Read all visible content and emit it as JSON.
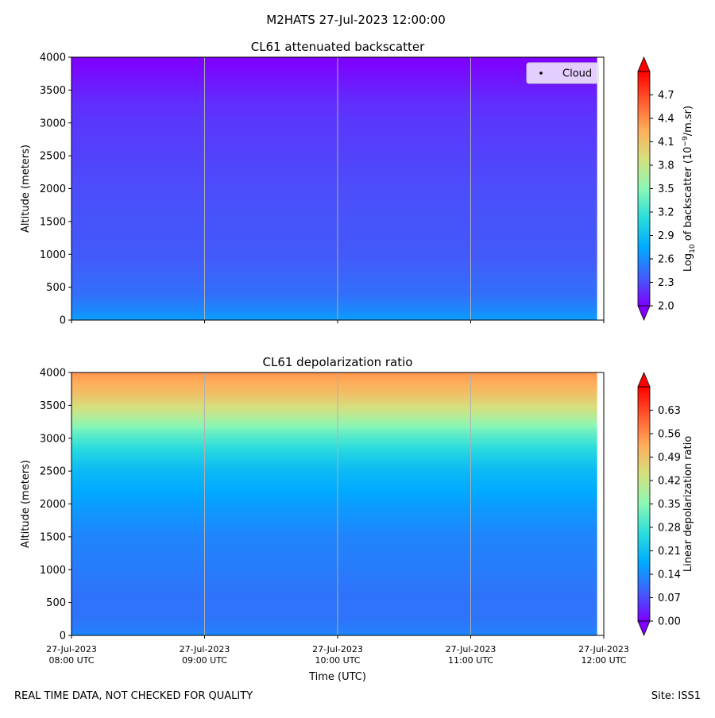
{
  "figure": {
    "suptitle": "M2HATS 27-Jul-2023 12:00:00",
    "footer_left": "REAL TIME DATA, NOT CHECKED FOR QUALITY",
    "footer_right": "Site: ISS1",
    "xlabel": "Time (UTC)",
    "colors": {
      "colormap": [
        "#7f00ff",
        "#3f60fa",
        "#00aaff",
        "#2adddd",
        "#8bf7b5",
        "#d4e17f",
        "#ffae5a",
        "#ff5a2e",
        "#ff0000"
      ],
      "vgrid": "#b0b0b0",
      "cloud_marker": "#000000"
    }
  },
  "chart_data": [
    {
      "type": "heatmap",
      "title": "CL61 attenuated backscatter",
      "ylabel": "Altitude (meters)",
      "colorbar_label_main": "Log",
      "colorbar_label_sub": "10",
      "colorbar_label_rest": " of backscatter (10",
      "colorbar_label_sup": "−9",
      "colorbar_label_end": "/m.sr)",
      "colorbar_range": [
        2.0,
        5.0
      ],
      "colorbar_ticks": [
        "2.0",
        "2.3",
        "2.6",
        "2.9",
        "3.2",
        "3.5",
        "3.8",
        "4.1",
        "4.4",
        "4.7"
      ],
      "colorbar_tick_values": [
        2.0,
        2.3,
        2.6,
        2.9,
        3.2,
        3.5,
        3.8,
        4.1,
        4.4,
        4.7
      ],
      "ylim": [
        0,
        4000
      ],
      "yticks": [
        0,
        500,
        1000,
        1500,
        2000,
        2500,
        3000,
        3500,
        4000
      ],
      "xlim_hours": [
        8,
        12
      ],
      "data_end_hour": 11.95,
      "legend": {
        "position": "upper-right",
        "entries": [
          "Cloud"
        ]
      },
      "profile": {
        "altitude": [
          0,
          100,
          200,
          400,
          600,
          800,
          1000,
          1500,
          2000,
          2500,
          3000,
          3300,
          3600,
          3800,
          4000
        ],
        "value": [
          2.7,
          2.62,
          2.55,
          2.45,
          2.42,
          2.38,
          2.35,
          2.33,
          2.3,
          2.26,
          2.22,
          2.18,
          2.1,
          2.04,
          2.0
        ]
      }
    },
    {
      "type": "heatmap",
      "title": "CL61 depolarization ratio",
      "ylabel": "Altitude (meters)",
      "colorbar_label": "Linear depolarization ratio",
      "colorbar_range": [
        0.0,
        0.7
      ],
      "colorbar_ticks": [
        "0.00",
        "0.07",
        "0.14",
        "0.21",
        "0.28",
        "0.35",
        "0.42",
        "0.49",
        "0.56",
        "0.63"
      ],
      "colorbar_tick_values": [
        0.0,
        0.07,
        0.14,
        0.21,
        0.28,
        0.35,
        0.42,
        0.49,
        0.56,
        0.63
      ],
      "ylim": [
        0,
        4000
      ],
      "yticks": [
        0,
        500,
        1000,
        1500,
        2000,
        2500,
        3000,
        3500,
        4000
      ],
      "xlim_hours": [
        8,
        12
      ],
      "data_end_hour": 11.95,
      "xtick_hours": [
        8,
        9,
        10,
        11,
        12
      ],
      "xtick_labels": [
        [
          "27-Jul-2023",
          "08:00 UTC"
        ],
        [
          "27-Jul-2023",
          "09:00 UTC"
        ],
        [
          "27-Jul-2023",
          "10:00 UTC"
        ],
        [
          "27-Jul-2023",
          "11:00 UTC"
        ],
        [
          "27-Jul-2023",
          "12:00 UTC"
        ]
      ],
      "profile": {
        "altitude": [
          0,
          100,
          300,
          600,
          1000,
          1500,
          2000,
          2500,
          2800,
          3100,
          3400,
          3700,
          4000
        ],
        "value": [
          0.14,
          0.12,
          0.11,
          0.11,
          0.12,
          0.13,
          0.16,
          0.2,
          0.25,
          0.32,
          0.42,
          0.5,
          0.55
        ]
      }
    }
  ]
}
